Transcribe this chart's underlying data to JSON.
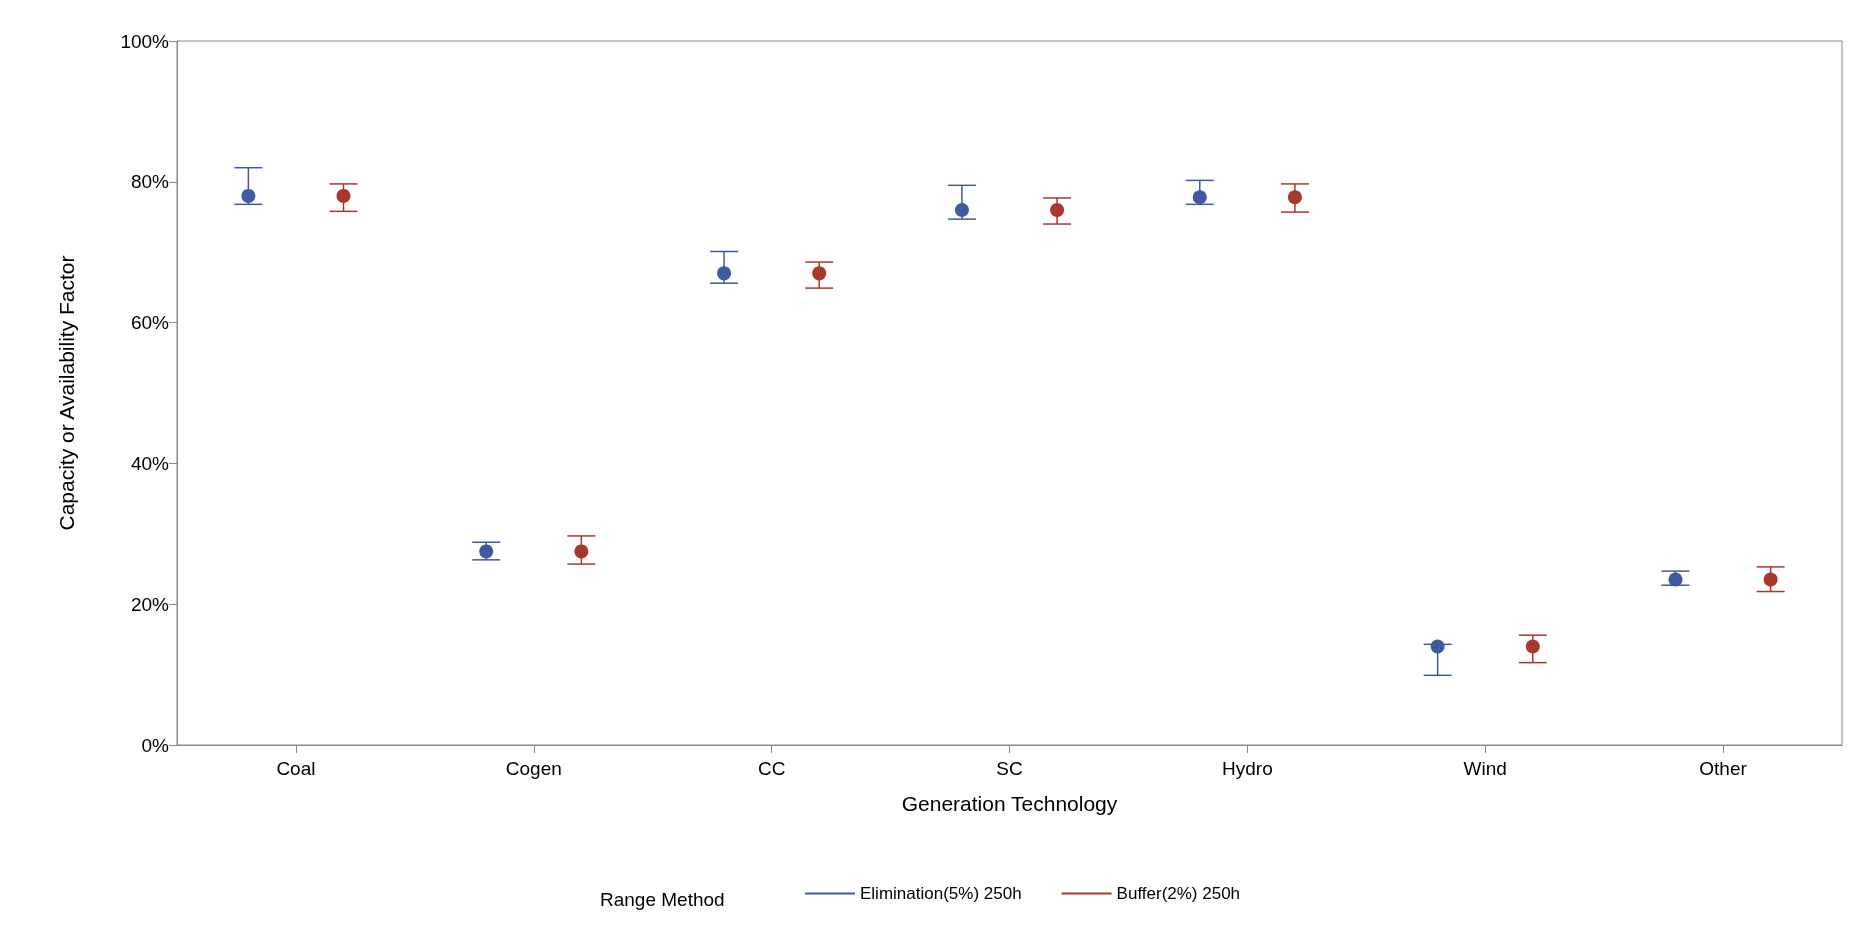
{
  "chart_data": {
    "type": "scatter",
    "xlabel": "Generation Technology",
    "ylabel": "Capacity or Availability Factor",
    "legend_title": "Range Method",
    "categories": [
      "Coal",
      "Cogen",
      "CC",
      "SC",
      "Hydro",
      "Wind",
      "Other"
    ],
    "series": [
      {
        "name": "Elimination(5%) 250h",
        "color": "#3f5aa0",
        "values": [
          78,
          27.5,
          67,
          76,
          77.8,
          14,
          23.5
        ],
        "errors": [
          [
            76.8,
            82
          ],
          [
            26.3,
            28.8
          ],
          [
            65.6,
            70.1
          ],
          [
            74.7,
            79.5
          ],
          [
            76.8,
            80.2
          ],
          [
            9.9,
            14.3
          ],
          [
            22.7,
            24.7
          ]
        ]
      },
      {
        "name": "Buffer(2%) 250h",
        "color": "#a8382c",
        "values": [
          78,
          27.5,
          67,
          76,
          77.8,
          14,
          23.5
        ],
        "errors": [
          [
            75.8,
            79.7
          ],
          [
            25.7,
            29.7
          ],
          [
            64.9,
            68.6
          ],
          [
            74,
            77.7
          ],
          [
            75.7,
            79.7
          ],
          [
            11.7,
            15.6
          ],
          [
            21.8,
            25.3
          ]
        ]
      }
    ],
    "ylim": [
      0,
      100
    ],
    "yticks": [
      {
        "value": 0,
        "label": "0%"
      },
      {
        "value": 20,
        "label": "20%"
      },
      {
        "value": 40,
        "label": "40%"
      },
      {
        "value": 60,
        "label": "60%"
      },
      {
        "value": 80,
        "label": "80%"
      },
      {
        "value": 100,
        "label": "100%"
      }
    ],
    "marker": "circle",
    "grid": false,
    "legend": "bottom"
  }
}
